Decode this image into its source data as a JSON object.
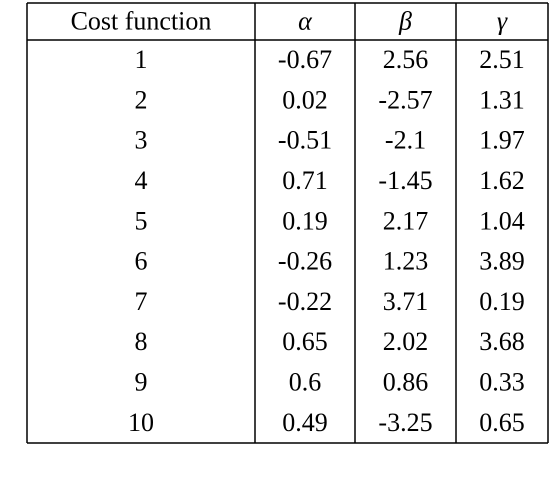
{
  "table": {
    "header": [
      "Cost function",
      "α",
      "β",
      "γ"
    ],
    "rows": [
      [
        "1",
        "-0.67",
        "2.56",
        "2.51"
      ],
      [
        "2",
        "0.02",
        "-2.57",
        "1.31"
      ],
      [
        "3",
        "-0.51",
        "-2.1",
        "1.97"
      ],
      [
        "4",
        "0.71",
        "-1.45",
        "1.62"
      ],
      [
        "5",
        "0.19",
        "2.17",
        "1.04"
      ],
      [
        "6",
        "-0.26",
        "1.23",
        "3.89"
      ],
      [
        "7",
        "-0.22",
        "3.71",
        "0.19"
      ],
      [
        "8",
        "0.65",
        "2.02",
        "3.68"
      ],
      [
        "9",
        "0.6",
        "0.86",
        "0.33"
      ],
      [
        "10",
        "0.49",
        "-3.25",
        "0.65"
      ]
    ]
  }
}
